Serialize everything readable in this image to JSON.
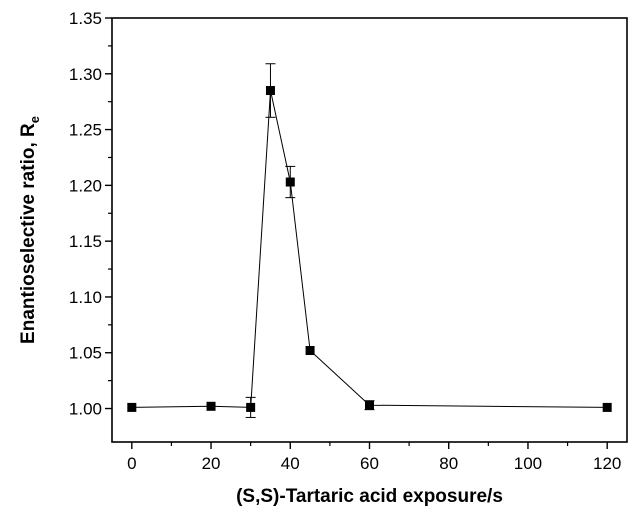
{
  "chart_data": {
    "type": "scatter",
    "title": "",
    "xlabel": "(S,S)-Tartaric acid exposure/s",
    "ylabel_main": "Enantioselective ratio, R",
    "ylabel_subscript": "e",
    "xlim": [
      -5,
      125
    ],
    "ylim": [
      0.97,
      1.35
    ],
    "x_ticks": [
      0,
      20,
      40,
      60,
      80,
      100,
      120
    ],
    "x_tick_labels": [
      "0",
      "20",
      "40",
      "60",
      "80",
      "100",
      "120"
    ],
    "y_ticks": [
      1.0,
      1.05,
      1.1,
      1.15,
      1.2,
      1.25,
      1.3,
      1.35
    ],
    "y_tick_labels": [
      "1.00",
      "1.05",
      "1.10",
      "1.15",
      "1.20",
      "1.25",
      "1.30",
      "1.35"
    ],
    "grid": false,
    "legend": "none",
    "series": [
      {
        "marker": "square",
        "line": true,
        "color": "#000000",
        "points": [
          {
            "x": 0,
            "y": 1.001,
            "err": 0.0
          },
          {
            "x": 20,
            "y": 1.002,
            "err": 0.0
          },
          {
            "x": 30,
            "y": 1.001,
            "err": 0.009
          },
          {
            "x": 35,
            "y": 1.285,
            "err": 0.024
          },
          {
            "x": 40,
            "y": 1.203,
            "err": 0.014
          },
          {
            "x": 45,
            "y": 1.052,
            "err": 0.0
          },
          {
            "x": 60,
            "y": 1.003,
            "err": 0.004
          },
          {
            "x": 120,
            "y": 1.001,
            "err": 0.0
          }
        ]
      }
    ]
  }
}
